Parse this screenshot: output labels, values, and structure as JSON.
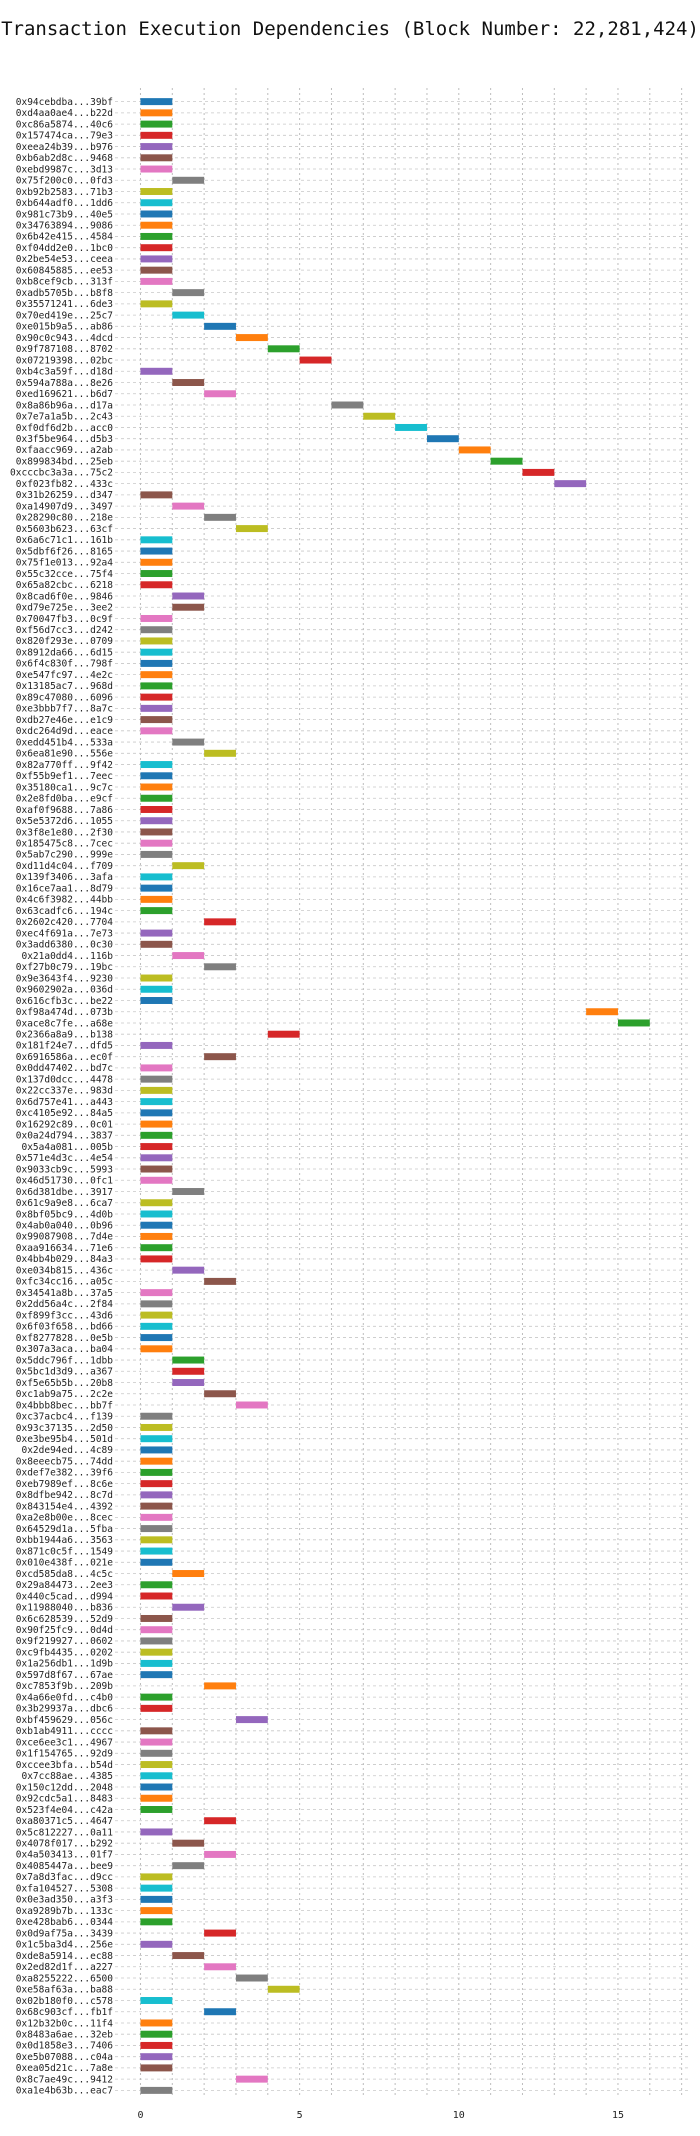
{
  "chart_data": {
    "type": "gantt",
    "title": "Transaction Execution Dependencies (Block Number: 22,281,424)",
    "xlabel": "",
    "ylabel": "",
    "xlim": [
      -0.8,
      17.2
    ],
    "xticks": [
      0,
      5,
      10,
      15
    ],
    "grid": true,
    "palette": [
      "#1f77b4",
      "#ff7f0e",
      "#2ca02c",
      "#d62728",
      "#9467bd",
      "#8c564b",
      "#e377c2",
      "#7f7f7f",
      "#bcbd22",
      "#17becf"
    ],
    "transactions": [
      {
        "label": "0x94cebdba...39bf",
        "start": 0,
        "end": 1
      },
      {
        "label": "0xd4aa0ae4...b22d",
        "start": 0,
        "end": 1
      },
      {
        "label": "0xc86a5874...40c6",
        "start": 0,
        "end": 1
      },
      {
        "label": "0x157474ca...79e3",
        "start": 0,
        "end": 1
      },
      {
        "label": "0xeea24b39...b976",
        "start": 0,
        "end": 1
      },
      {
        "label": "0xb6ab2d8c...9468",
        "start": 0,
        "end": 1
      },
      {
        "label": "0xebd9987c...3d13",
        "start": 0,
        "end": 1
      },
      {
        "label": "0x75f200c0...0fd3",
        "start": 1,
        "end": 2
      },
      {
        "label": "0xb92b2583...71b3",
        "start": 0,
        "end": 1
      },
      {
        "label": "0xb644adf0...1dd6",
        "start": 0,
        "end": 1
      },
      {
        "label": "0x981c73b9...40e5",
        "start": 0,
        "end": 1
      },
      {
        "label": "0x34763894...9086",
        "start": 0,
        "end": 1
      },
      {
        "label": "0x6b42e415...4584",
        "start": 0,
        "end": 1
      },
      {
        "label": "0xf04dd2e0...1bc0",
        "start": 0,
        "end": 1
      },
      {
        "label": "0x2be54e53...ceea",
        "start": 0,
        "end": 1
      },
      {
        "label": "0x60845885...ee53",
        "start": 0,
        "end": 1
      },
      {
        "label": "0xb8cef9cb...313f",
        "start": 0,
        "end": 1
      },
      {
        "label": "0xadb5705b...b8f8",
        "start": 1,
        "end": 2
      },
      {
        "label": "0x35571241...6de3",
        "start": 0,
        "end": 1
      },
      {
        "label": "0x70ed419e...25c7",
        "start": 1,
        "end": 2
      },
      {
        "label": "0xe015b9a5...ab86",
        "start": 2,
        "end": 3
      },
      {
        "label": "0x90c0c943...4dcd",
        "start": 3,
        "end": 4
      },
      {
        "label": "0x9f787108...8702",
        "start": 4,
        "end": 5
      },
      {
        "label": "0x07219398...02bc",
        "start": 5,
        "end": 6
      },
      {
        "label": "0xb4c3a59f...d18d",
        "start": 0,
        "end": 1
      },
      {
        "label": "0x594a788a...8e26",
        "start": 1,
        "end": 2
      },
      {
        "label": "0xed169621...b6d7",
        "start": 2,
        "end": 3
      },
      {
        "label": "0x8a86b96a...d17a",
        "start": 6,
        "end": 7
      },
      {
        "label": "0x7e7a1a5b...2c43",
        "start": 7,
        "end": 8
      },
      {
        "label": "0xf0df6d2b...acc0",
        "start": 8,
        "end": 9
      },
      {
        "label": "0x3f5be964...d5b3",
        "start": 9,
        "end": 10
      },
      {
        "label": "0xfaacc969...a2ab",
        "start": 10,
        "end": 11
      },
      {
        "label": "0x899834bd...25eb",
        "start": 11,
        "end": 12
      },
      {
        "label": "0xcccbc3a3a...75c2",
        "start": 12,
        "end": 13
      },
      {
        "label": "0xf023fb82...433c",
        "start": 13,
        "end": 14
      },
      {
        "label": "0x31b26259...d347",
        "start": 0,
        "end": 1
      },
      {
        "label": "0xa14907d9...3497",
        "start": 1,
        "end": 2
      },
      {
        "label": "0x28290c80...218e",
        "start": 2,
        "end": 3
      },
      {
        "label": "0x5603b623...63cf",
        "start": 3,
        "end": 4
      },
      {
        "label": "0x6a6c71c1...161b",
        "start": 0,
        "end": 1
      },
      {
        "label": "0x5dbf6f26...8165",
        "start": 0,
        "end": 1
      },
      {
        "label": "0x75f1e013...92a4",
        "start": 0,
        "end": 1
      },
      {
        "label": "0x55c32cce...75f4",
        "start": 0,
        "end": 1
      },
      {
        "label": "0x65a82cbc...6218",
        "start": 0,
        "end": 1
      },
      {
        "label": "0x8cad6f0e...9846",
        "start": 1,
        "end": 2
      },
      {
        "label": "0xd79e725e...3ee2",
        "start": 1,
        "end": 2
      },
      {
        "label": "0x70047fb3...0c9f",
        "start": 0,
        "end": 1
      },
      {
        "label": "0xf56d7cc3...d242",
        "start": 0,
        "end": 1
      },
      {
        "label": "0x820f293e...0709",
        "start": 0,
        "end": 1
      },
      {
        "label": "0x8912da66...6d15",
        "start": 0,
        "end": 1
      },
      {
        "label": "0x6f4c830f...798f",
        "start": 0,
        "end": 1
      },
      {
        "label": "0xe547fc97...4e2c",
        "start": 0,
        "end": 1
      },
      {
        "label": "0x13185ac7...968d",
        "start": 0,
        "end": 1
      },
      {
        "label": "0x89c47080...6096",
        "start": 0,
        "end": 1
      },
      {
        "label": "0xe3bbb7f7...8a7c",
        "start": 0,
        "end": 1
      },
      {
        "label": "0xdb27e46e...e1c9",
        "start": 0,
        "end": 1
      },
      {
        "label": "0xdc264d9d...eace",
        "start": 0,
        "end": 1
      },
      {
        "label": "0xedd451b4...533a",
        "start": 1,
        "end": 2
      },
      {
        "label": "0x6ea81e90...556e",
        "start": 2,
        "end": 3
      },
      {
        "label": "0x82a770ff...9f42",
        "start": 0,
        "end": 1
      },
      {
        "label": "0xf55b9ef1...7eec",
        "start": 0,
        "end": 1
      },
      {
        "label": "0x35180ca1...9c7c",
        "start": 0,
        "end": 1
      },
      {
        "label": "0x2e8fd0ba...e9cf",
        "start": 0,
        "end": 1
      },
      {
        "label": "0xaf0f9688...7a86",
        "start": 0,
        "end": 1
      },
      {
        "label": "0x5e5372d6...1055",
        "start": 0,
        "end": 1
      },
      {
        "label": "0x3f8e1e80...2f30",
        "start": 0,
        "end": 1
      },
      {
        "label": "0x185475c8...7cec",
        "start": 0,
        "end": 1
      },
      {
        "label": "0x5ab7c290...999e",
        "start": 0,
        "end": 1
      },
      {
        "label": "0xd11d4c04...f709",
        "start": 1,
        "end": 2
      },
      {
        "label": "0x139f3406...3afa",
        "start": 0,
        "end": 1
      },
      {
        "label": "0x16ce7aa1...8d79",
        "start": 0,
        "end": 1
      },
      {
        "label": "0x4c6f3982...44bb",
        "start": 0,
        "end": 1
      },
      {
        "label": "0x63cadfc6...194c",
        "start": 0,
        "end": 1
      },
      {
        "label": "0x2602c420...7704",
        "start": 2,
        "end": 3
      },
      {
        "label": "0xec4f691a...7e73",
        "start": 0,
        "end": 1
      },
      {
        "label": "0x3add6380...0c30",
        "start": 0,
        "end": 1
      },
      {
        "label": "0x21a0dd4...116b",
        "start": 1,
        "end": 2
      },
      {
        "label": "0xf27b0c79...19bc",
        "start": 2,
        "end": 3
      },
      {
        "label": "0x9e3643f4...9230",
        "start": 0,
        "end": 1
      },
      {
        "label": "0x9602902a...036d",
        "start": 0,
        "end": 1
      },
      {
        "label": "0x616cfb3c...be22",
        "start": 0,
        "end": 1
      },
      {
        "label": "0xf98a474d...073b",
        "start": 14,
        "end": 15
      },
      {
        "label": "0xace8c7fe...a68e",
        "start": 15,
        "end": 16
      },
      {
        "label": "0x2366a8a9...b138",
        "start": 4,
        "end": 5
      },
      {
        "label": "0x181f24e7...dfd5",
        "start": 0,
        "end": 1
      },
      {
        "label": "0x6916586a...ec0f",
        "start": 2,
        "end": 3
      },
      {
        "label": "0x0dd47402...bd7c",
        "start": 0,
        "end": 1
      },
      {
        "label": "0x137d0dcc...4478",
        "start": 0,
        "end": 1
      },
      {
        "label": "0x22cc337e...983d",
        "start": 0,
        "end": 1
      },
      {
        "label": "0x6d757e41...a443",
        "start": 0,
        "end": 1
      },
      {
        "label": "0xc4105e92...84a5",
        "start": 0,
        "end": 1
      },
      {
        "label": "0x16292c89...0c01",
        "start": 0,
        "end": 1
      },
      {
        "label": "0x0a24d794...3837",
        "start": 0,
        "end": 1
      },
      {
        "label": "0x5a4a081...005b",
        "start": 0,
        "end": 1
      },
      {
        "label": "0x571e4d3c...4e54",
        "start": 0,
        "end": 1
      },
      {
        "label": "0x9033cb9c...5993",
        "start": 0,
        "end": 1
      },
      {
        "label": "0x46d51730...0fc1",
        "start": 0,
        "end": 1
      },
      {
        "label": "0x6d381dbe...3917",
        "start": 1,
        "end": 2
      },
      {
        "label": "0x61c9a9e8...6ca7",
        "start": 0,
        "end": 1
      },
      {
        "label": "0x8bf05bc9...4d0b",
        "start": 0,
        "end": 1
      },
      {
        "label": "0x4ab0a040...0b96",
        "start": 0,
        "end": 1
      },
      {
        "label": "0x99087908...7d4e",
        "start": 0,
        "end": 1
      },
      {
        "label": "0xaa916634...71e6",
        "start": 0,
        "end": 1
      },
      {
        "label": "0x4bb4b029...84a3",
        "start": 0,
        "end": 1
      },
      {
        "label": "0xe034b815...436c",
        "start": 1,
        "end": 2
      },
      {
        "label": "0xfc34cc16...a05c",
        "start": 2,
        "end": 3
      },
      {
        "label": "0x34541a8b...37a5",
        "start": 0,
        "end": 1
      },
      {
        "label": "0x2dd56a4c...2f84",
        "start": 0,
        "end": 1
      },
      {
        "label": "0xf899f3cc...43d6",
        "start": 0,
        "end": 1
      },
      {
        "label": "0x6f03f658...bd66",
        "start": 0,
        "end": 1
      },
      {
        "label": "0xf8277828...0e5b",
        "start": 0,
        "end": 1
      },
      {
        "label": "0x307a3aca...ba04",
        "start": 0,
        "end": 1
      },
      {
        "label": "0x5ddc796f...1dbb",
        "start": 1,
        "end": 2
      },
      {
        "label": "0x5bc1d3d9...a367",
        "start": 1,
        "end": 2
      },
      {
        "label": "0xf5e65b5b...20b8",
        "start": 1,
        "end": 2
      },
      {
        "label": "0xc1ab9a75...2c2e",
        "start": 2,
        "end": 3
      },
      {
        "label": "0x4bbb8bec...bb7f",
        "start": 3,
        "end": 4
      },
      {
        "label": "0xc37acbc4...f139",
        "start": 0,
        "end": 1
      },
      {
        "label": "0x93c37135...2d50",
        "start": 0,
        "end": 1
      },
      {
        "label": "0xe3be95b4...501d",
        "start": 0,
        "end": 1
      },
      {
        "label": "0x2de94ed...4c89",
        "start": 0,
        "end": 1
      },
      {
        "label": "0x8eeecb75...74dd",
        "start": 0,
        "end": 1
      },
      {
        "label": "0xdef7e382...39f6",
        "start": 0,
        "end": 1
      },
      {
        "label": "0xeb7989ef...8c6e",
        "start": 0,
        "end": 1
      },
      {
        "label": "0x8dfbe942...8c7d",
        "start": 0,
        "end": 1
      },
      {
        "label": "0x843154e4...4392",
        "start": 0,
        "end": 1
      },
      {
        "label": "0xa2e8b00e...8cec",
        "start": 0,
        "end": 1
      },
      {
        "label": "0x64529d1a...5fba",
        "start": 0,
        "end": 1
      },
      {
        "label": "0xbb1944a6...3563",
        "start": 0,
        "end": 1
      },
      {
        "label": "0x871c0c5f...1549",
        "start": 0,
        "end": 1
      },
      {
        "label": "0x010e438f...021e",
        "start": 0,
        "end": 1
      },
      {
        "label": "0xcd585da8...4c5c",
        "start": 1,
        "end": 2
      },
      {
        "label": "0x29a84473...2ee3",
        "start": 0,
        "end": 1
      },
      {
        "label": "0x440c5cad...d994",
        "start": 0,
        "end": 1
      },
      {
        "label": "0x11988040...b836",
        "start": 1,
        "end": 2
      },
      {
        "label": "0x6c628539...52d9",
        "start": 0,
        "end": 1
      },
      {
        "label": "0x90f25fc9...0d4d",
        "start": 0,
        "end": 1
      },
      {
        "label": "0x9f219927...0602",
        "start": 0,
        "end": 1
      },
      {
        "label": "0xc9fb4435...0202",
        "start": 0,
        "end": 1
      },
      {
        "label": "0x1a256db1...1d9b",
        "start": 0,
        "end": 1
      },
      {
        "label": "0x597d8f67...67ae",
        "start": 0,
        "end": 1
      },
      {
        "label": "0xc7853f9b...209b",
        "start": 2,
        "end": 3
      },
      {
        "label": "0x4a66e0fd...c4b0",
        "start": 0,
        "end": 1
      },
      {
        "label": "0x3b29937a...dbc6",
        "start": 0,
        "end": 1
      },
      {
        "label": "0xbf459629...056c",
        "start": 3,
        "end": 4
      },
      {
        "label": "0xb1ab4911...cccc",
        "start": 0,
        "end": 1
      },
      {
        "label": "0xce6ee3c1...4967",
        "start": 0,
        "end": 1
      },
      {
        "label": "0x1f154765...92d9",
        "start": 0,
        "end": 1
      },
      {
        "label": "0xccee3bfa...b54d",
        "start": 0,
        "end": 1
      },
      {
        "label": "0x7cc88ae...4385",
        "start": 0,
        "end": 1
      },
      {
        "label": "0x150c12dd...2048",
        "start": 0,
        "end": 1
      },
      {
        "label": "0x92cdc5a1...8483",
        "start": 0,
        "end": 1
      },
      {
        "label": "0x523f4e04...c42a",
        "start": 0,
        "end": 1
      },
      {
        "label": "0xa80371c5...4647",
        "start": 2,
        "end": 3
      },
      {
        "label": "0x5c812227...0a11",
        "start": 0,
        "end": 1
      },
      {
        "label": "0x4078f017...b292",
        "start": 1,
        "end": 2
      },
      {
        "label": "0x4a503413...01f7",
        "start": 2,
        "end": 3
      },
      {
        "label": "0x4085447a...bee9",
        "start": 1,
        "end": 2
      },
      {
        "label": "0x7a8d3fac...d9cc",
        "start": 0,
        "end": 1
      },
      {
        "label": "0xfa104527...5308",
        "start": 0,
        "end": 1
      },
      {
        "label": "0x0e3ad350...a3f3",
        "start": 0,
        "end": 1
      },
      {
        "label": "0xa9289b7b...133c",
        "start": 0,
        "end": 1
      },
      {
        "label": "0xe428bab6...0344",
        "start": 0,
        "end": 1
      },
      {
        "label": "0x0d9af75a...3439",
        "start": 2,
        "end": 3
      },
      {
        "label": "0x1c5ba3d4...256e",
        "start": 0,
        "end": 1
      },
      {
        "label": "0xde8a5914...ec88",
        "start": 1,
        "end": 2
      },
      {
        "label": "0x2ed82d1f...a227",
        "start": 2,
        "end": 3
      },
      {
        "label": "0xa8255222...6500",
        "start": 3,
        "end": 4
      },
      {
        "label": "0xe58af63a...ba88",
        "start": 4,
        "end": 5
      },
      {
        "label": "0x02b180f0...c578",
        "start": 0,
        "end": 1
      },
      {
        "label": "0x68c903cf...fb1f",
        "start": 2,
        "end": 3
      },
      {
        "label": "0x12b32b0c...11f4",
        "start": 0,
        "end": 1
      },
      {
        "label": "0x8483a6ae...32eb",
        "start": 0,
        "end": 1
      },
      {
        "label": "0x0d1858e3...7406",
        "start": 0,
        "end": 1
      },
      {
        "label": "0xe5b07088...c04a",
        "start": 0,
        "end": 1
      },
      {
        "label": "0xea05d21c...7a8e",
        "start": 0,
        "end": 1
      },
      {
        "label": "0x8c7ae49c...9412",
        "start": 3,
        "end": 4
      },
      {
        "label": "0xa1e4b63b...eac7",
        "start": 0,
        "end": 1
      }
    ]
  }
}
